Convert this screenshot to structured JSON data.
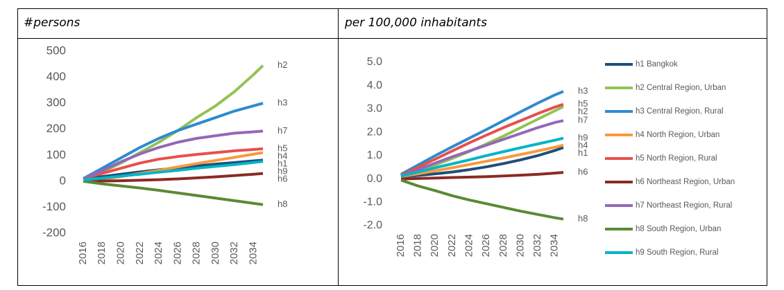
{
  "chart_data": [
    {
      "type": "line",
      "title": "#persons",
      "x": [
        2016,
        2018,
        2020,
        2022,
        2024,
        2026,
        2028,
        2030,
        2032,
        2034,
        2035
      ],
      "xlim": [
        2016,
        2035
      ],
      "xticks": [
        2016,
        2018,
        2020,
        2022,
        2024,
        2026,
        2028,
        2030,
        2032,
        2034
      ],
      "ylim": [
        -200,
        500
      ],
      "yticks": [
        500,
        400,
        300,
        200,
        100,
        0,
        -100,
        -200
      ],
      "grid": false,
      "series": [
        {
          "name": "h1",
          "color": "#1f4e79",
          "values": [
            10,
            18,
            27,
            36,
            44,
            52,
            59,
            66,
            72,
            78,
            81
          ]
        },
        {
          "name": "h2",
          "color": "#92c353",
          "values": [
            10,
            35,
            70,
            110,
            150,
            195,
            245,
            290,
            345,
            410,
            445
          ]
        },
        {
          "name": "h3",
          "color": "#2e8bcf",
          "values": [
            10,
            50,
            90,
            130,
            165,
            195,
            220,
            245,
            270,
            290,
            300
          ]
        },
        {
          "name": "h4",
          "color": "#f79a3e",
          "values": [
            0,
            8,
            18,
            30,
            42,
            55,
            68,
            80,
            92,
            104,
            110
          ]
        },
        {
          "name": "h5",
          "color": "#e8504a",
          "values": [
            10,
            30,
            50,
            70,
            85,
            95,
            103,
            110,
            117,
            122,
            125
          ]
        },
        {
          "name": "h6",
          "color": "#8b2a24",
          "values": [
            0,
            1,
            2,
            4,
            6,
            9,
            13,
            17,
            22,
            27,
            30
          ]
        },
        {
          "name": "h7",
          "color": "#9368b7",
          "values": [
            10,
            40,
            75,
            105,
            130,
            150,
            165,
            175,
            185,
            190,
            193
          ]
        },
        {
          "name": "h8",
          "color": "#5a8a33",
          "values": [
            0,
            -10,
            -18,
            -26,
            -35,
            -45,
            -55,
            -65,
            -75,
            -85,
            -90
          ]
        },
        {
          "name": "h9",
          "color": "#00b5c9",
          "values": [
            5,
            12,
            20,
            27,
            35,
            42,
            50,
            57,
            64,
            72,
            76
          ]
        }
      ]
    },
    {
      "type": "line",
      "title": "per 100,000 inhabitants",
      "x": [
        2016,
        2018,
        2020,
        2022,
        2024,
        2026,
        2028,
        2030,
        2032,
        2034,
        2035
      ],
      "xlim": [
        2016,
        2035
      ],
      "xticks": [
        2016,
        2018,
        2020,
        2022,
        2024,
        2026,
        2028,
        2030,
        2032,
        2034
      ],
      "ylim": [
        -2,
        5
      ],
      "yticks": [
        {
          "value": 5,
          "label": "5.0"
        },
        {
          "value": 4,
          "label": "4.0"
        },
        {
          "value": 3,
          "label": "3.0"
        },
        {
          "value": 2,
          "label": "2.0"
        },
        {
          "value": 1,
          "label": "1.0"
        },
        {
          "value": 0,
          "label": "0.0"
        },
        {
          "value": -1,
          "label": "-1.0"
        },
        {
          "value": -2,
          "label": "-2.0"
        }
      ],
      "grid": false,
      "legend": "right",
      "series": [
        {
          "name": "h1 Bangkok",
          "label": "h1",
          "color": "#1f4e79",
          "values": [
            0.1,
            0.15,
            0.22,
            0.3,
            0.4,
            0.52,
            0.66,
            0.82,
            1.0,
            1.22,
            1.35
          ]
        },
        {
          "name": "h2 Central Region, Urban",
          "label": "h2",
          "color": "#92c353",
          "values": [
            0.15,
            0.35,
            0.6,
            0.88,
            1.18,
            1.5,
            1.84,
            2.2,
            2.56,
            2.92,
            3.1
          ]
        },
        {
          "name": "h3 Central Region, Rural",
          "label": "h3",
          "color": "#2e8bcf",
          "values": [
            0.2,
            0.6,
            1.0,
            1.38,
            1.75,
            2.12,
            2.5,
            2.88,
            3.25,
            3.6,
            3.75
          ]
        },
        {
          "name": "h4 North Region, Urban",
          "label": "h4",
          "color": "#f79a3e",
          "values": [
            0.1,
            0.22,
            0.35,
            0.48,
            0.62,
            0.76,
            0.9,
            1.05,
            1.2,
            1.36,
            1.45
          ]
        },
        {
          "name": "h5 North Region, Rural",
          "label": "h5",
          "color": "#e8504a",
          "values": [
            0.15,
            0.5,
            0.85,
            1.2,
            1.55,
            1.88,
            2.2,
            2.5,
            2.8,
            3.08,
            3.2
          ]
        },
        {
          "name": "h6 Northeast Region, Urban",
          "label": "h6",
          "color": "#8b2a24",
          "values": [
            0,
            0.02,
            0.04,
            0.06,
            0.08,
            0.1,
            0.13,
            0.16,
            0.2,
            0.25,
            0.28
          ]
        },
        {
          "name": "h7 Northeast Region, Rural",
          "label": "h7",
          "color": "#9368b7",
          "values": [
            0.12,
            0.4,
            0.68,
            0.95,
            1.2,
            1.45,
            1.7,
            1.95,
            2.2,
            2.42,
            2.5
          ]
        },
        {
          "name": "h8 South Region, Urban",
          "label": "h8",
          "color": "#5a8a33",
          "values": [
            -0.05,
            -0.3,
            -0.5,
            -0.72,
            -0.9,
            -1.06,
            -1.22,
            -1.38,
            -1.52,
            -1.66,
            -1.72
          ]
        },
        {
          "name": "h9 South Region, Rural",
          "label": "h9",
          "color": "#00b5c9",
          "values": [
            0.12,
            0.3,
            0.48,
            0.65,
            0.82,
            1.0,
            1.17,
            1.34,
            1.5,
            1.66,
            1.75
          ]
        }
      ]
    }
  ]
}
